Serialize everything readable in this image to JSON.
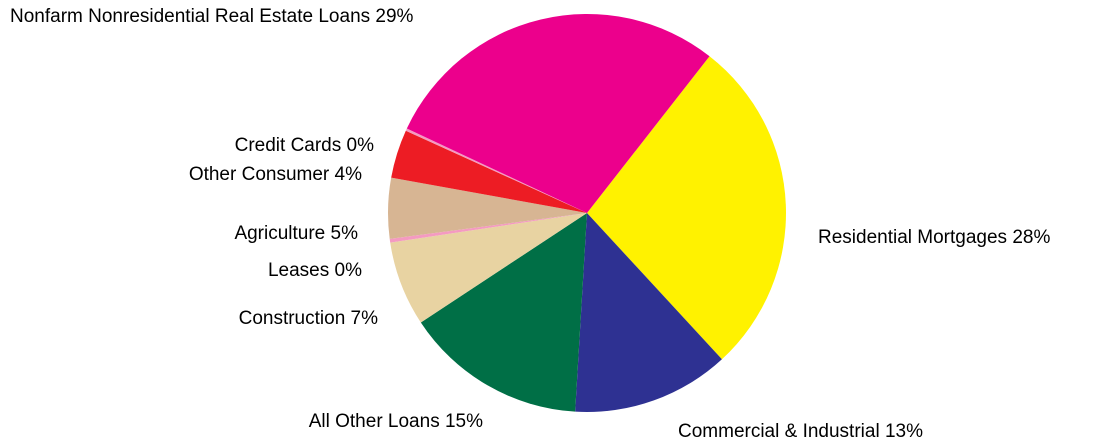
{
  "chart_data": {
    "type": "pie",
    "title": "",
    "start_angle_deg": 0,
    "direction": "clockwise",
    "slices": [
      {
        "label": "Residential Mortgages 28%",
        "value": 28,
        "color": "#FFF200"
      },
      {
        "label": "Commercial & Industrial 13%",
        "value": 13,
        "color": "#2E3192"
      },
      {
        "label": "All Other Loans 15%",
        "value": 15,
        "color": "#006F46"
      },
      {
        "label": "Construction 7%",
        "value": 7,
        "color": "#E8D3A2"
      },
      {
        "label": "Leases 0%",
        "value": 0.3,
        "color": "#F49AC1"
      },
      {
        "label": "Agriculture 5%",
        "value": 5,
        "color": "#D7B593"
      },
      {
        "label": "Other Consumer 4%",
        "value": 4,
        "color": "#ED1C24"
      },
      {
        "label": "Credit Cards 0%",
        "value": 0.2,
        "color": "#F49AC1"
      },
      {
        "label": "Nonfarm Nonresidential Real Estate Loans 29%",
        "value": 29,
        "color": "#EC008C"
      }
    ]
  }
}
